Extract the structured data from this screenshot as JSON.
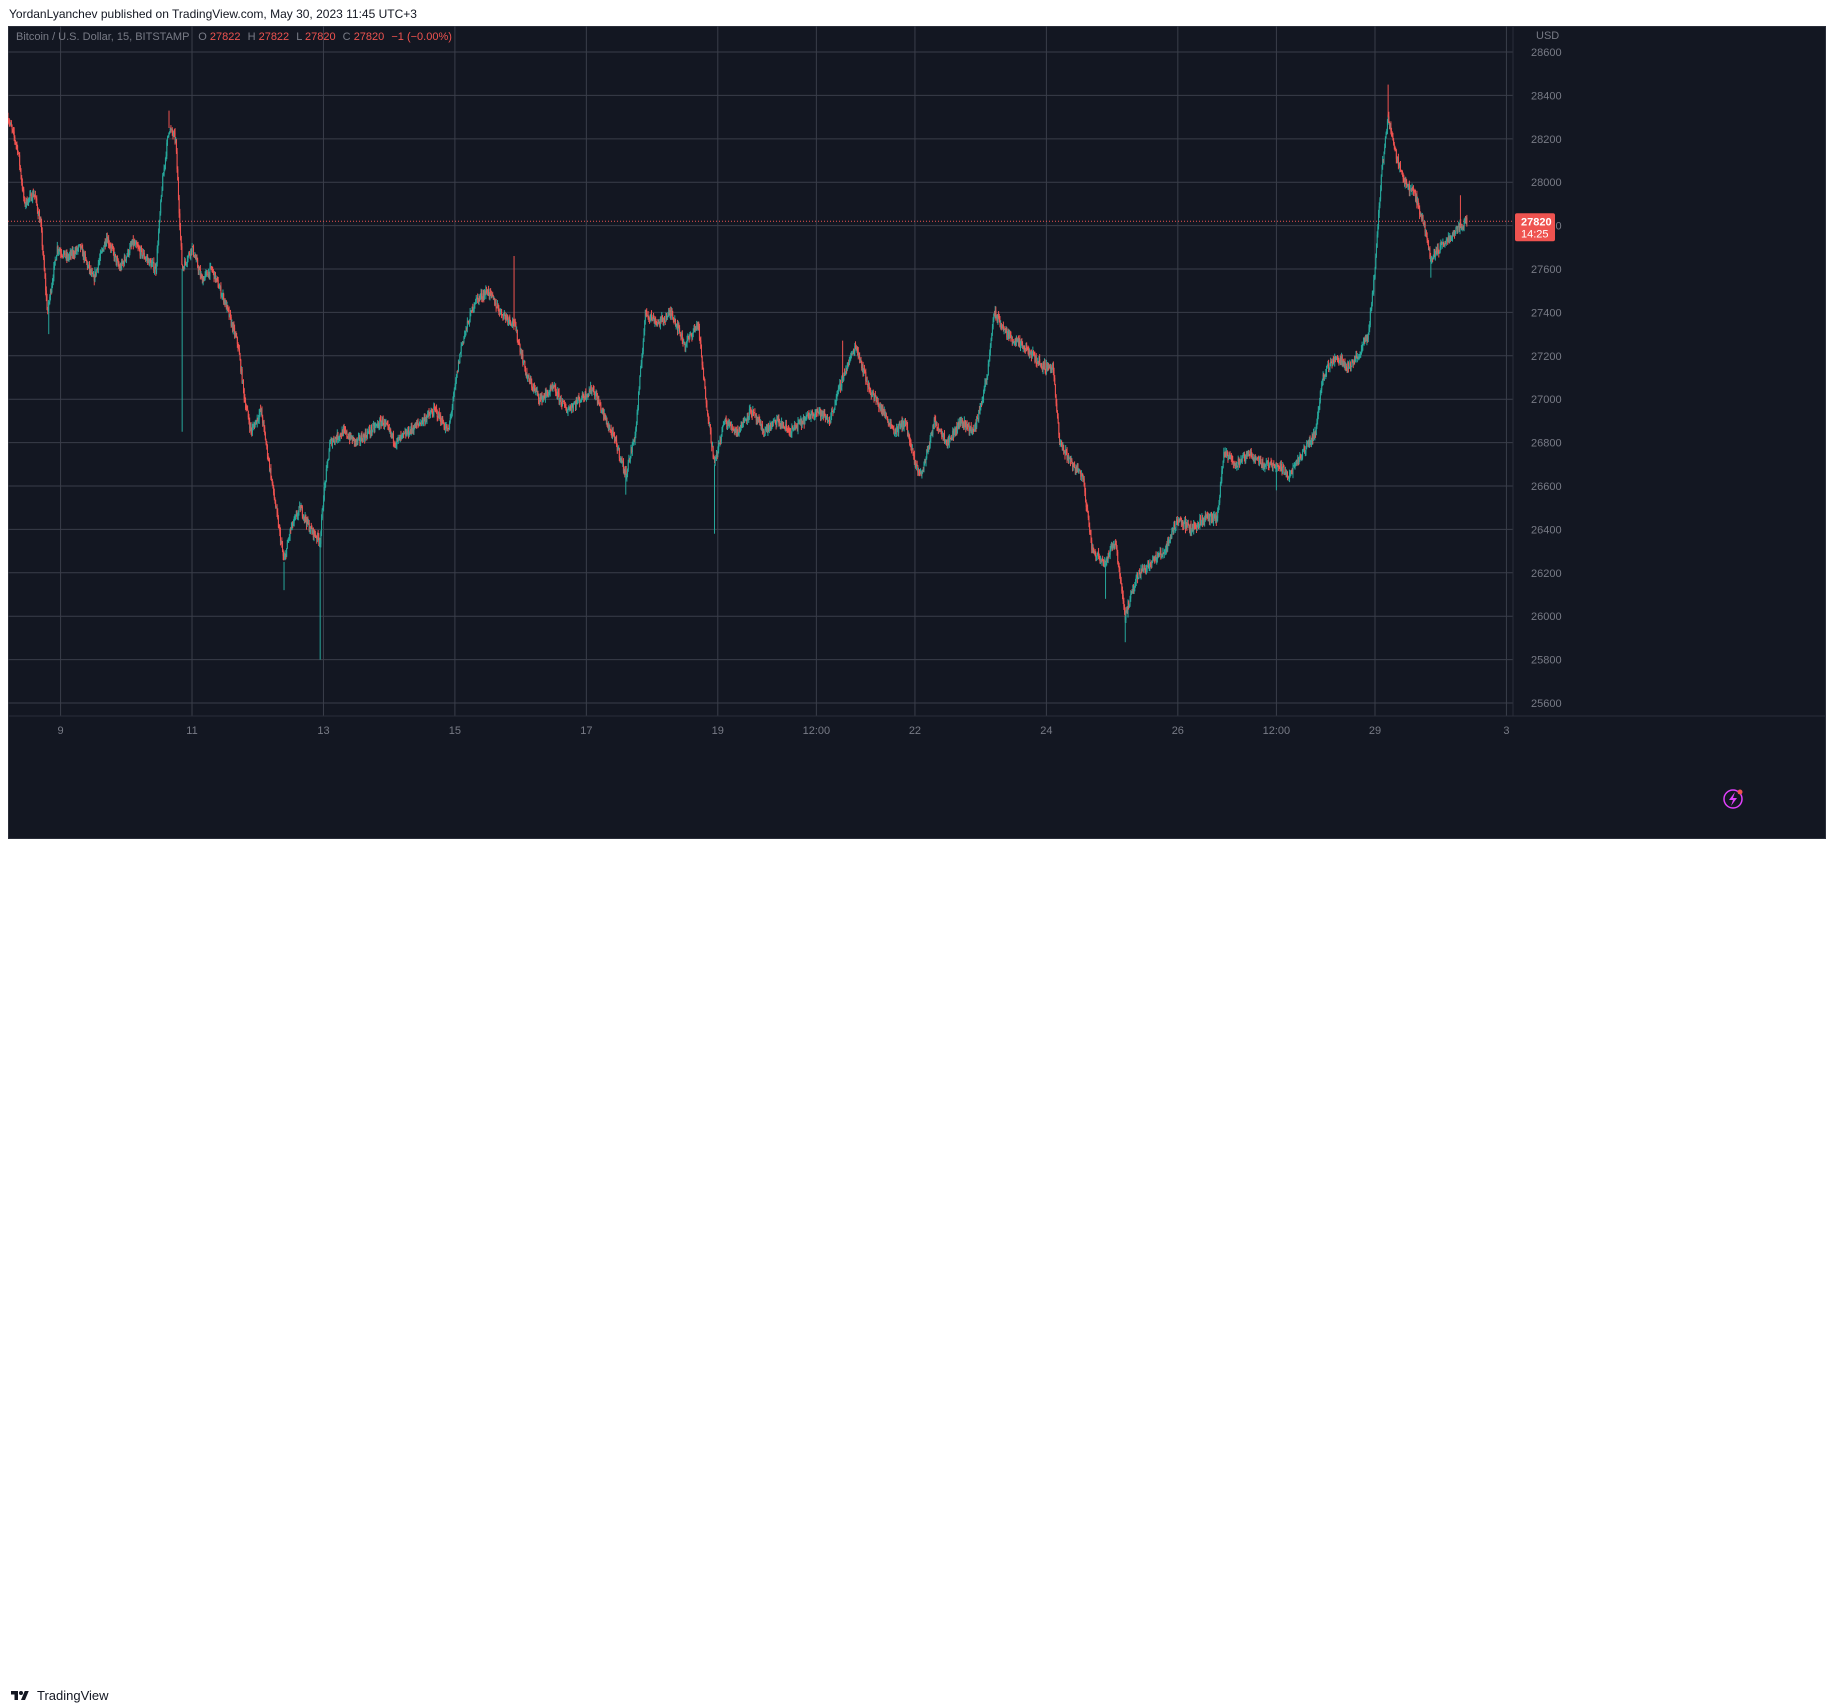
{
  "header": {
    "publish_line": "YordanLyanchev published on TradingView.com, May 30, 2023 11:45 UTC+3"
  },
  "legend": {
    "symbol": "Bitcoin / U.S. Dollar, 15, BITSTAMP",
    "o_label": "O",
    "o_value": "27822",
    "h_label": "H",
    "h_value": "27822",
    "l_label": "L",
    "l_value": "27820",
    "c_label": "C",
    "c_value": "27820",
    "change": "−1 (−0.00%)"
  },
  "price_axis": {
    "currency": "USD",
    "current_price": "27820",
    "countdown": "14:25"
  },
  "footer": {
    "brand": "TradingView"
  },
  "colors": {
    "background": "#131722",
    "grid": "#3a3e4a",
    "up": "#26a69a",
    "down": "#ef5350",
    "text": "#787b86",
    "price_tag": "#ef5350"
  },
  "icons": {
    "alert": "lightning-icon",
    "logo": "tradingview-logo-icon"
  },
  "chart_data": {
    "type": "candlestick",
    "symbol": "Bitcoin / U.S. Dollar",
    "interval": "15",
    "exchange": "BITSTAMP",
    "currency": "USD",
    "y_ticks": [
      25600,
      25800,
      26000,
      26200,
      26400,
      26600,
      26800,
      27000,
      27200,
      27400,
      27600,
      27800,
      28000,
      28200,
      28400,
      28600
    ],
    "ylim": [
      25540,
      28720
    ],
    "x_tick_labels": [
      "9",
      "11",
      "13",
      "15",
      "17",
      "19",
      "12:00",
      "22",
      "24",
      "26",
      "12:00",
      "29",
      "3"
    ],
    "x_tick_positions": [
      0.9,
      2.9,
      4.9,
      6.9,
      8.9,
      10.9,
      12.4,
      13.9,
      15.9,
      17.9,
      19.4,
      20.9,
      22.9
    ],
    "xlim": [
      0.1,
      23.0
    ],
    "last_price": 27820,
    "grid": true,
    "price_path": [
      [
        0.1,
        28300
      ],
      [
        0.25,
        28150
      ],
      [
        0.35,
        27900
      ],
      [
        0.5,
        27950
      ],
      [
        0.6,
        27800
      ],
      [
        0.7,
        27400
      ],
      [
        0.85,
        27700
      ],
      [
        1.0,
        27650
      ],
      [
        1.2,
        27700
      ],
      [
        1.4,
        27550
      ],
      [
        1.6,
        27750
      ],
      [
        1.8,
        27600
      ],
      [
        2.0,
        27720
      ],
      [
        2.2,
        27650
      ],
      [
        2.35,
        27600
      ],
      [
        2.45,
        28000
      ],
      [
        2.55,
        28250
      ],
      [
        2.65,
        28200
      ],
      [
        2.75,
        27600
      ],
      [
        2.9,
        27700
      ],
      [
        3.05,
        27550
      ],
      [
        3.2,
        27600
      ],
      [
        3.4,
        27450
      ],
      [
        3.6,
        27250
      ],
      [
        3.7,
        27000
      ],
      [
        3.8,
        26850
      ],
      [
        3.95,
        26950
      ],
      [
        4.05,
        26750
      ],
      [
        4.2,
        26450
      ],
      [
        4.3,
        26250
      ],
      [
        4.4,
        26400
      ],
      [
        4.55,
        26500
      ],
      [
        4.7,
        26400
      ],
      [
        4.85,
        26350
      ],
      [
        4.9,
        26550
      ],
      [
        5.0,
        26800
      ],
      [
        5.2,
        26850
      ],
      [
        5.4,
        26800
      ],
      [
        5.6,
        26850
      ],
      [
        5.8,
        26900
      ],
      [
        6.0,
        26800
      ],
      [
        6.2,
        26850
      ],
      [
        6.4,
        26900
      ],
      [
        6.6,
        26950
      ],
      [
        6.8,
        26850
      ],
      [
        7.0,
        27250
      ],
      [
        7.2,
        27450
      ],
      [
        7.4,
        27500
      ],
      [
        7.6,
        27400
      ],
      [
        7.8,
        27350
      ],
      [
        8.0,
        27100
      ],
      [
        8.2,
        27000
      ],
      [
        8.4,
        27050
      ],
      [
        8.6,
        26950
      ],
      [
        8.8,
        27000
      ],
      [
        9.0,
        27050
      ],
      [
        9.2,
        26900
      ],
      [
        9.35,
        26800
      ],
      [
        9.5,
        26650
      ],
      [
        9.65,
        26850
      ],
      [
        9.8,
        27400
      ],
      [
        10.0,
        27350
      ],
      [
        10.2,
        27400
      ],
      [
        10.4,
        27250
      ],
      [
        10.6,
        27350
      ],
      [
        10.7,
        27050
      ],
      [
        10.85,
        26700
      ],
      [
        11.0,
        26900
      ],
      [
        11.2,
        26850
      ],
      [
        11.4,
        26950
      ],
      [
        11.6,
        26850
      ],
      [
        11.8,
        26900
      ],
      [
        12.0,
        26850
      ],
      [
        12.2,
        26900
      ],
      [
        12.4,
        26950
      ],
      [
        12.6,
        26900
      ],
      [
        12.8,
        27100
      ],
      [
        13.0,
        27250
      ],
      [
        13.2,
        27050
      ],
      [
        13.4,
        26950
      ],
      [
        13.6,
        26850
      ],
      [
        13.75,
        26900
      ],
      [
        13.9,
        26700
      ],
      [
        14.0,
        26650
      ],
      [
        14.2,
        26900
      ],
      [
        14.4,
        26800
      ],
      [
        14.6,
        26900
      ],
      [
        14.8,
        26850
      ],
      [
        15.0,
        27100
      ],
      [
        15.1,
        27400
      ],
      [
        15.3,
        27300
      ],
      [
        15.5,
        27250
      ],
      [
        15.7,
        27200
      ],
      [
        15.85,
        27150
      ],
      [
        16.0,
        27150
      ],
      [
        16.1,
        26800
      ],
      [
        16.3,
        26700
      ],
      [
        16.45,
        26650
      ],
      [
        16.6,
        26300
      ],
      [
        16.8,
        26250
      ],
      [
        16.95,
        26350
      ],
      [
        17.1,
        26000
      ],
      [
        17.3,
        26200
      ],
      [
        17.5,
        26250
      ],
      [
        17.7,
        26300
      ],
      [
        17.9,
        26450
      ],
      [
        18.1,
        26400
      ],
      [
        18.3,
        26450
      ],
      [
        18.5,
        26450
      ],
      [
        18.6,
        26750
      ],
      [
        18.8,
        26700
      ],
      [
        19.0,
        26750
      ],
      [
        19.2,
        26700
      ],
      [
        19.4,
        26700
      ],
      [
        19.6,
        26650
      ],
      [
        19.8,
        26750
      ],
      [
        20.0,
        26850
      ],
      [
        20.1,
        27100
      ],
      [
        20.3,
        27200
      ],
      [
        20.5,
        27150
      ],
      [
        20.65,
        27200
      ],
      [
        20.8,
        27300
      ],
      [
        20.9,
        27600
      ],
      [
        21.0,
        28050
      ],
      [
        21.1,
        28300
      ],
      [
        21.2,
        28150
      ],
      [
        21.35,
        28000
      ],
      [
        21.5,
        27950
      ],
      [
        21.65,
        27800
      ],
      [
        21.75,
        27650
      ],
      [
        21.9,
        27700
      ],
      [
        22.05,
        27750
      ],
      [
        22.2,
        27800
      ],
      [
        22.3,
        27820
      ]
    ],
    "spikes": [
      {
        "x": 0.72,
        "low": 27300
      },
      {
        "x": 2.55,
        "high": 28330
      },
      {
        "x": 2.75,
        "low": 26850
      },
      {
        "x": 4.3,
        "low": 26120
      },
      {
        "x": 4.85,
        "low": 25800
      },
      {
        "x": 7.8,
        "high": 27660
      },
      {
        "x": 9.5,
        "low": 26560
      },
      {
        "x": 10.85,
        "low": 26380
      },
      {
        "x": 12.8,
        "high": 27270
      },
      {
        "x": 16.8,
        "low": 26080
      },
      {
        "x": 17.1,
        "low": 25880
      },
      {
        "x": 19.4,
        "low": 26580
      },
      {
        "x": 21.1,
        "high": 28450
      },
      {
        "x": 21.75,
        "low": 27560
      },
      {
        "x": 22.2,
        "high": 27940
      }
    ]
  }
}
